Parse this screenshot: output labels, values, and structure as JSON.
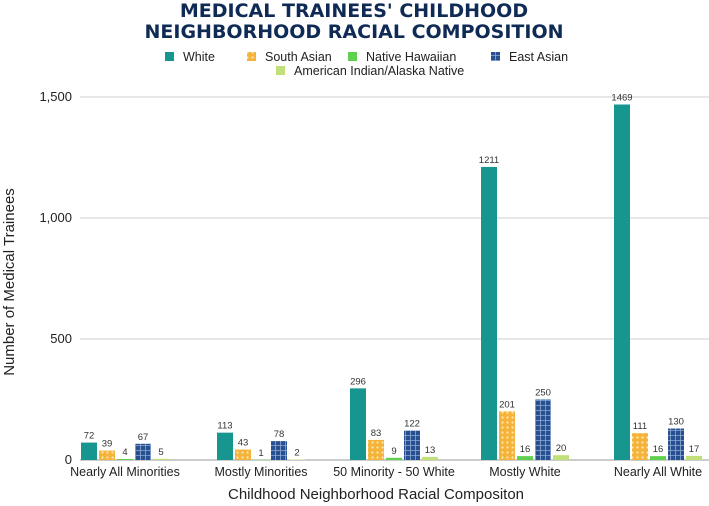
{
  "chart_data": {
    "type": "bar",
    "title_lines": [
      "MEDICAL TRAINEES' CHILDHOOD",
      "NEIGHBORHOOD RACIAL COMPOSITION"
    ],
    "xlabel": "Childhood Neighborhood Racial Compositon",
    "ylabel": "Number of Medical Trainees",
    "ylim": [
      0,
      1500
    ],
    "yticks": [
      0,
      500,
      1000,
      1500
    ],
    "ytick_labels": [
      "0",
      "500",
      "1,000",
      "1,500"
    ],
    "grid": true,
    "legend_position": "top",
    "categories": [
      "Nearly All Minorities",
      "Mostly Minorities",
      "50 Minority - 50 White",
      "Mostly White",
      "Nearly All White"
    ],
    "series": [
      {
        "name": "White",
        "color": "#16968f",
        "pattern": "solid",
        "values": [
          72,
          113,
          296,
          1211,
          1469
        ]
      },
      {
        "name": "South Asian",
        "color": "#f5b33a",
        "pattern": "dots",
        "values": [
          39,
          43,
          83,
          201,
          111
        ]
      },
      {
        "name": "Native Hawaiian",
        "color": "#5fcf4e",
        "pattern": "solid",
        "values": [
          4,
          1,
          9,
          16,
          16
        ]
      },
      {
        "name": "East Asian",
        "color": "#26508f",
        "pattern": "grid",
        "values": [
          67,
          78,
          122,
          250,
          130
        ]
      },
      {
        "name": "American Indian/Alaska Native",
        "color": "#c2e07a",
        "pattern": "solid",
        "values": [
          5,
          2,
          13,
          20,
          17
        ]
      }
    ]
  }
}
